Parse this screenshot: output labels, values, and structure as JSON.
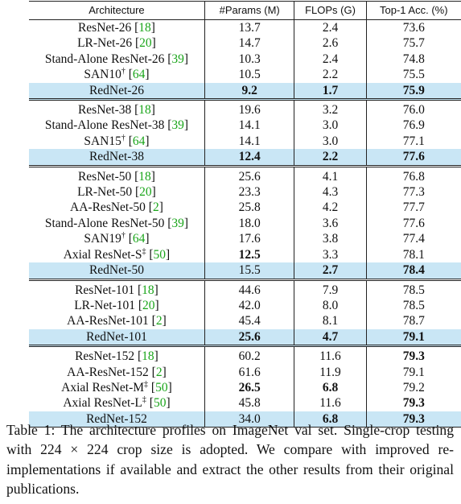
{
  "table": {
    "headers": [
      "Architecture",
      "#Params (M)",
      "FLOPs (G)",
      "Top-1 Acc. (%)"
    ],
    "groups": [
      [
        {
          "name": "ResNet-26",
          "sup": "",
          "cite": "18",
          "params": "13.7",
          "flops": "2.4",
          "acc": "73.6",
          "bold": [],
          "red": false
        },
        {
          "name": "LR-Net-26",
          "sup": "",
          "cite": "20",
          "params": "14.7",
          "flops": "2.6",
          "acc": "75.7",
          "bold": [],
          "red": false
        },
        {
          "name": "Stand-Alone ResNet-26",
          "sup": "",
          "cite": "39",
          "params": "10.3",
          "flops": "2.4",
          "acc": "74.8",
          "bold": [],
          "red": false
        },
        {
          "name": "SAN10",
          "sup": "†",
          "cite": "64",
          "params": "10.5",
          "flops": "2.2",
          "acc": "75.5",
          "bold": [],
          "red": false
        },
        {
          "name": "RedNet-26",
          "sup": "",
          "cite": "",
          "params": "9.2",
          "flops": "1.7",
          "acc": "75.9",
          "bold": [
            "params",
            "flops",
            "acc"
          ],
          "red": true
        }
      ],
      [
        {
          "name": "ResNet-38",
          "sup": "",
          "cite": "18",
          "params": "19.6",
          "flops": "3.2",
          "acc": "76.0",
          "bold": [],
          "red": false
        },
        {
          "name": "Stand-Alone ResNet-38",
          "sup": "",
          "cite": "39",
          "params": "14.1",
          "flops": "3.0",
          "acc": "76.9",
          "bold": [],
          "red": false
        },
        {
          "name": "SAN15",
          "sup": "†",
          "cite": "64",
          "params": "14.1",
          "flops": "3.0",
          "acc": "77.1",
          "bold": [],
          "red": false
        },
        {
          "name": "RedNet-38",
          "sup": "",
          "cite": "",
          "params": "12.4",
          "flops": "2.2",
          "acc": "77.6",
          "bold": [
            "params",
            "flops",
            "acc"
          ],
          "red": true
        }
      ],
      [
        {
          "name": "ResNet-50",
          "sup": "",
          "cite": "18",
          "params": "25.6",
          "flops": "4.1",
          "acc": "76.8",
          "bold": [],
          "red": false
        },
        {
          "name": "LR-Net-50",
          "sup": "",
          "cite": "20",
          "params": "23.3",
          "flops": "4.3",
          "acc": "77.3",
          "bold": [],
          "red": false
        },
        {
          "name": "AA-ResNet-50",
          "sup": "",
          "cite": "2",
          "params": "25.8",
          "flops": "4.2",
          "acc": "77.7",
          "bold": [],
          "red": false
        },
        {
          "name": "Stand-Alone ResNet-50",
          "sup": "",
          "cite": "39",
          "params": "18.0",
          "flops": "3.6",
          "acc": "77.6",
          "bold": [],
          "red": false
        },
        {
          "name": "SAN19",
          "sup": "†",
          "cite": "64",
          "params": "17.6",
          "flops": "3.8",
          "acc": "77.4",
          "bold": [],
          "red": false
        },
        {
          "name": "Axial ResNet-S",
          "sup": "‡",
          "cite": "50",
          "params": "12.5",
          "flops": "3.3",
          "acc": "78.1",
          "bold": [
            "params"
          ],
          "red": false
        },
        {
          "name": "RedNet-50",
          "sup": "",
          "cite": "",
          "params": "15.5",
          "flops": "2.7",
          "acc": "78.4",
          "bold": [
            "flops",
            "acc"
          ],
          "red": true
        }
      ],
      [
        {
          "name": "ResNet-101",
          "sup": "",
          "cite": "18",
          "params": "44.6",
          "flops": "7.9",
          "acc": "78.5",
          "bold": [],
          "red": false
        },
        {
          "name": "LR-Net-101",
          "sup": "",
          "cite": "20",
          "params": "42.0",
          "flops": "8.0",
          "acc": "78.5",
          "bold": [],
          "red": false
        },
        {
          "name": "AA-ResNet-101",
          "sup": "",
          "cite": "2",
          "params": "45.4",
          "flops": "8.1",
          "acc": "78.7",
          "bold": [],
          "red": false
        },
        {
          "name": "RedNet-101",
          "sup": "",
          "cite": "",
          "params": "25.6",
          "flops": "4.7",
          "acc": "79.1",
          "bold": [
            "params",
            "flops",
            "acc"
          ],
          "red": true
        }
      ],
      [
        {
          "name": "ResNet-152",
          "sup": "",
          "cite": "18",
          "params": "60.2",
          "flops": "11.6",
          "acc": "79.3",
          "bold": [
            "acc"
          ],
          "red": false
        },
        {
          "name": "AA-ResNet-152",
          "sup": "",
          "cite": "2",
          "params": "61.6",
          "flops": "11.9",
          "acc": "79.1",
          "bold": [],
          "red": false
        },
        {
          "name": "Axial ResNet-M",
          "sup": "‡",
          "cite": "50",
          "params": "26.5",
          "flops": "6.8",
          "acc": "79.2",
          "bold": [
            "params",
            "flops"
          ],
          "red": false
        },
        {
          "name": "Axial ResNet-L",
          "sup": "‡",
          "cite": "50",
          "params": "45.8",
          "flops": "11.6",
          "acc": "79.3",
          "bold": [
            "acc"
          ],
          "red": false
        },
        {
          "name": "RedNet-152",
          "sup": "",
          "cite": "",
          "params": "34.0",
          "flops": "6.8",
          "acc": "79.3",
          "bold": [
            "flops",
            "acc"
          ],
          "red": true
        }
      ]
    ]
  },
  "caption": "Table 1: The architecture profiles on ImageNet val set. Single-crop testing with 224 × 224 crop size is adopted. We compare with improved re-implementations if available and extract the other results from their original publications.",
  "colors": {
    "highlight": "#c9e6f5",
    "citation": "#1aa51a"
  }
}
